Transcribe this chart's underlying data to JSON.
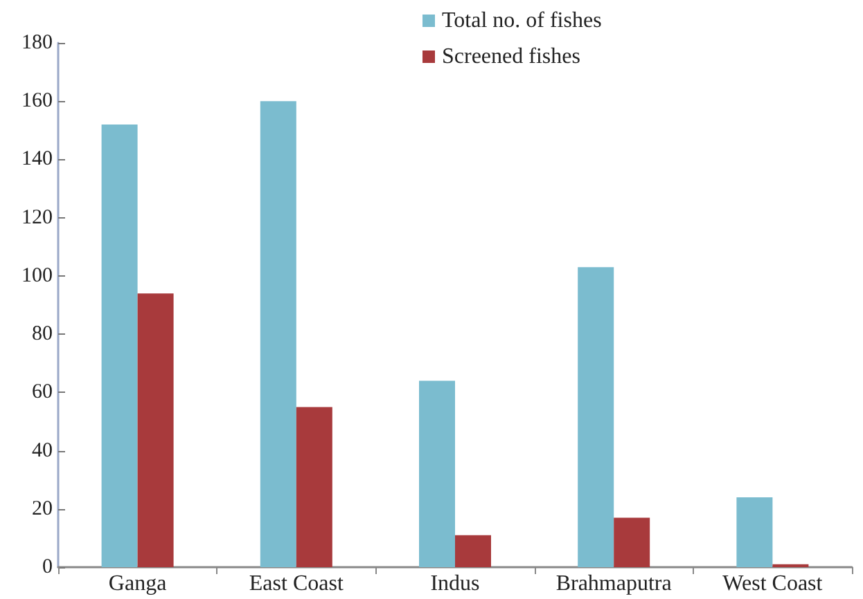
{
  "chart_data": {
    "type": "bar",
    "categories": [
      "Ganga",
      "East Coast",
      "Indus",
      "Brahmaputra",
      "West Coast"
    ],
    "series": [
      {
        "name": "Total no. of fishes",
        "color": "#7bbccf",
        "values": [
          152,
          160,
          64,
          103,
          24
        ]
      },
      {
        "name": "Screened fishes",
        "color": "#a83a3c",
        "values": [
          94,
          55,
          11,
          17,
          1
        ]
      }
    ],
    "ylim": [
      0,
      180
    ],
    "yticks": [
      0,
      20,
      40,
      60,
      80,
      100,
      120,
      140,
      160,
      180
    ],
    "grid": false,
    "legend": "top"
  }
}
